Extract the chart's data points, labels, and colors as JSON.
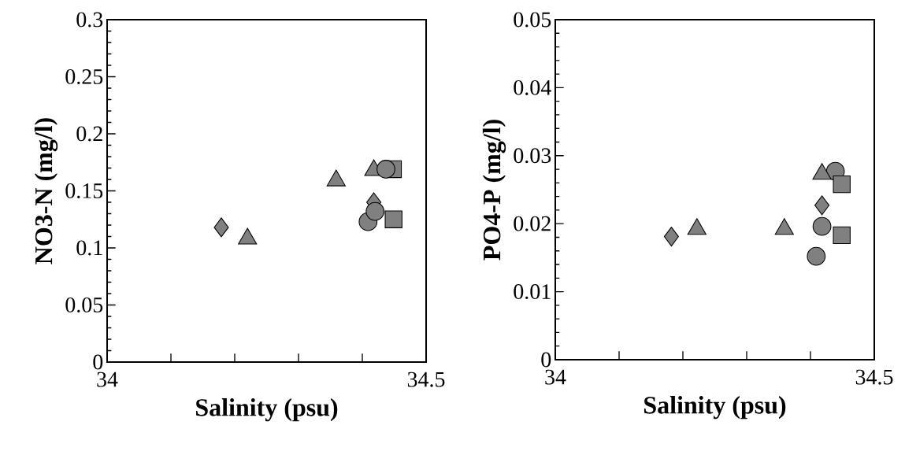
{
  "chart_data": [
    {
      "type": "scatter",
      "xlabel": "Salinity (psu)",
      "ylabel": "NO3-N (mg/l)",
      "xlim": [
        34,
        34.5
      ],
      "ylim": [
        0,
        0.3
      ],
      "xticks": [
        34,
        {
          "value": 34.1,
          "label": null
        },
        {
          "value": 34.2,
          "label": null
        },
        {
          "value": 34.3,
          "label": null
        },
        {
          "value": 34.4,
          "label": null
        },
        34.5
      ],
      "yticks": [
        0,
        0.05,
        0.1,
        0.15,
        0.2,
        0.25,
        0.3
      ],
      "series": [
        {
          "marker": "triangle",
          "color": "#808080",
          "x": [
            34.22,
            34.359,
            34.418
          ],
          "values": [
            0.108,
            0.159,
            0.168
          ]
        },
        {
          "marker": "square",
          "color": "#808080",
          "x": [
            34.448,
            34.449
          ],
          "values": [
            0.169,
            0.125
          ]
        },
        {
          "marker": "diamond",
          "color": "#808080",
          "x": [
            34.179,
            34.418
          ],
          "values": [
            0.118,
            0.14
          ]
        },
        {
          "marker": "circle",
          "color": "#808080",
          "x": [
            34.409,
            34.42,
            34.437
          ],
          "values": [
            0.123,
            0.132,
            0.169
          ]
        }
      ]
    },
    {
      "type": "scatter",
      "xlabel": "Salinity (psu)",
      "ylabel": "PO4-P (mg/l)",
      "xlim": [
        34,
        34.5
      ],
      "ylim": [
        0,
        0.05
      ],
      "xticks": [
        34,
        {
          "value": 34.1,
          "label": null
        },
        {
          "value": 34.2,
          "label": null
        },
        {
          "value": 34.3,
          "label": null
        },
        {
          "value": 34.4,
          "label": null
        },
        34.5
      ],
      "yticks": [
        0,
        0.01,
        0.02,
        0.03,
        0.04,
        0.05
      ],
      "series": [
        {
          "marker": "circle",
          "color": "#808080",
          "x": [
            34.409,
            34.418,
            34.439
          ],
          "values": [
            0.0152,
            0.0196,
            0.0277
          ]
        },
        {
          "marker": "triangle",
          "color": "#808080",
          "x": [
            34.222,
            34.359,
            34.418
          ],
          "values": [
            0.0192,
            0.0192,
            0.0273
          ]
        },
        {
          "marker": "square",
          "color": "#808080",
          "x": [
            34.449,
            34.449
          ],
          "values": [
            0.0258,
            0.0183
          ]
        },
        {
          "marker": "diamond",
          "color": "#808080",
          "x": [
            34.182,
            34.418
          ],
          "values": [
            0.0181,
            0.0227
          ]
        }
      ]
    }
  ]
}
